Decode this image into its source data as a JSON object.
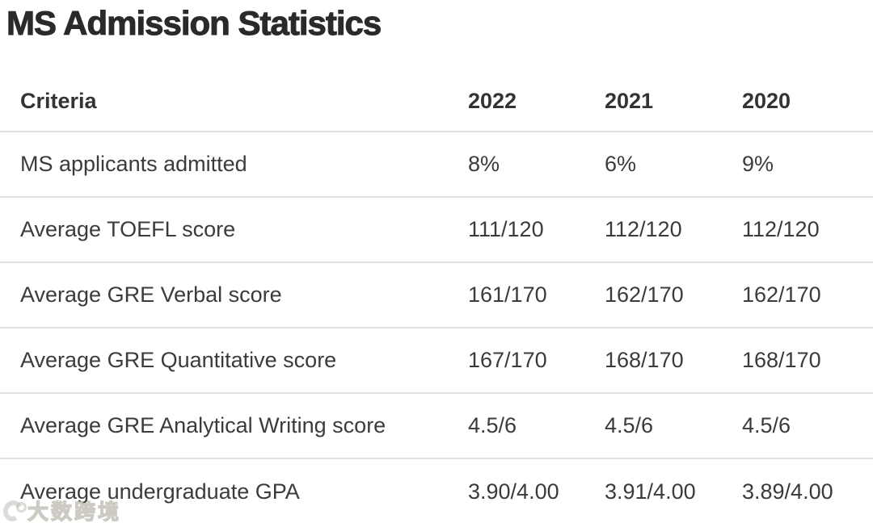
{
  "page": {
    "title": "MS Admission Statistics"
  },
  "colors": {
    "title_text": "#2a2a2a",
    "header_text": "#333333",
    "body_text": "#3b3b3b",
    "row_border": "#e2e2e2",
    "background": "#ffffff",
    "watermark": "#c1bdb6"
  },
  "watermark": {
    "icon": "c-swoosh-logo-icon",
    "text": "大数跨境"
  },
  "chart_data": {
    "type": "table",
    "title": "MS Admission Statistics",
    "columns": [
      "Criteria",
      "2022",
      "2021",
      "2020"
    ],
    "rows": [
      [
        "MS applicants admitted",
        "8%",
        "6%",
        "9%"
      ],
      [
        "Average TOEFL score",
        "111/120",
        "112/120",
        "112/120"
      ],
      [
        "Average GRE Verbal score",
        "161/170",
        "162/170",
        "162/170"
      ],
      [
        "Average GRE Quantitative score",
        "167/170",
        "168/170",
        "168/170"
      ],
      [
        "Average GRE Analytical Writing score",
        "4.5/6",
        "4.5/6",
        "4.5/6"
      ],
      [
        "Average undergraduate GPA",
        "3.90/4.00",
        "3.91/4.00",
        "3.89/4.00"
      ]
    ],
    "layout": {
      "grid": "horizontal-row-separators",
      "header_bold": true,
      "values_alignment": "left"
    }
  }
}
